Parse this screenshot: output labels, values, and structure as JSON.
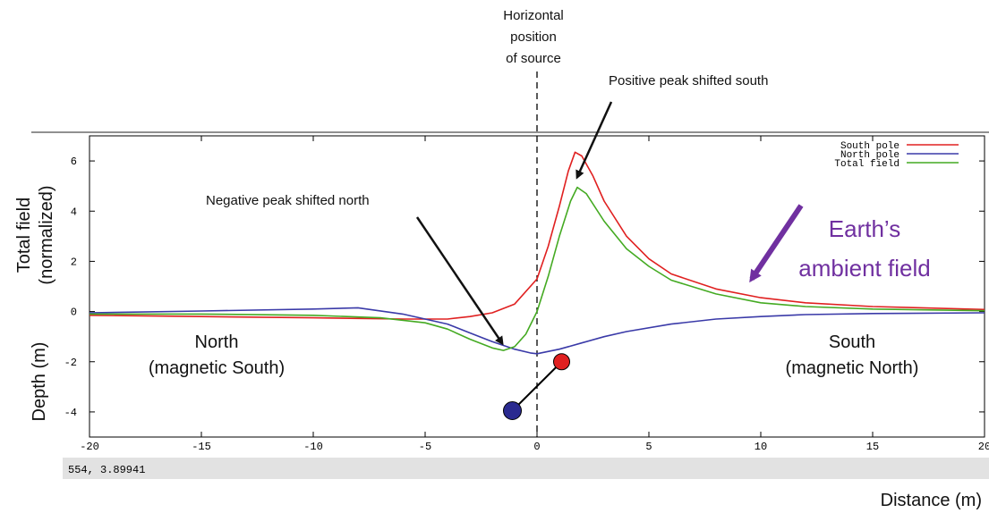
{
  "chart_data": {
    "type": "line",
    "x_range": [
      -20,
      20
    ],
    "y_range": [
      -5,
      7
    ],
    "x_ticks": [
      -20,
      -15,
      -10,
      -5,
      0,
      5,
      10,
      15,
      20
    ],
    "y_ticks": [
      -4,
      -2,
      0,
      2,
      4,
      6
    ],
    "xlabel": "Distance (m)",
    "ylabel_top": [
      "Total field",
      "(normalized)"
    ],
    "ylabel_bottom": "Depth (m)",
    "legend_position": "top-right",
    "series": [
      {
        "name": "South pole",
        "color": "#e02020",
        "points": [
          [
            -20,
            -0.15
          ],
          [
            -15,
            -0.2
          ],
          [
            -10,
            -0.25
          ],
          [
            -6,
            -0.3
          ],
          [
            -4,
            -0.3
          ],
          [
            -3,
            -0.2
          ],
          [
            -2,
            -0.05
          ],
          [
            -1,
            0.3
          ],
          [
            0,
            1.3
          ],
          [
            0.5,
            2.6
          ],
          [
            1,
            4.2
          ],
          [
            1.4,
            5.6
          ],
          [
            1.7,
            6.35
          ],
          [
            2,
            6.2
          ],
          [
            2.5,
            5.4
          ],
          [
            3,
            4.4
          ],
          [
            4,
            3.0
          ],
          [
            5,
            2.1
          ],
          [
            6,
            1.5
          ],
          [
            8,
            0.9
          ],
          [
            10,
            0.55
          ],
          [
            12,
            0.35
          ],
          [
            15,
            0.2
          ],
          [
            20,
            0.08
          ]
        ]
      },
      {
        "name": "North pole",
        "color": "#3a3aa8",
        "points": [
          [
            -20,
            -0.05
          ],
          [
            -15,
            0.02
          ],
          [
            -10,
            0.1
          ],
          [
            -8,
            0.15
          ],
          [
            -6,
            -0.1
          ],
          [
            -4,
            -0.5
          ],
          [
            -3,
            -0.85
          ],
          [
            -2,
            -1.2
          ],
          [
            -1,
            -1.5
          ],
          [
            -0.3,
            -1.65
          ],
          [
            0,
            -1.68
          ],
          [
            1,
            -1.5
          ],
          [
            2,
            -1.25
          ],
          [
            3,
            -1.0
          ],
          [
            4,
            -0.8
          ],
          [
            6,
            -0.5
          ],
          [
            8,
            -0.3
          ],
          [
            10,
            -0.2
          ],
          [
            12,
            -0.12
          ],
          [
            15,
            -0.08
          ],
          [
            20,
            -0.05
          ]
        ]
      },
      {
        "name": "Total field",
        "color": "#44aa22",
        "points": [
          [
            -20,
            -0.1
          ],
          [
            -15,
            -0.1
          ],
          [
            -10,
            -0.15
          ],
          [
            -7,
            -0.25
          ],
          [
            -5,
            -0.45
          ],
          [
            -4,
            -0.7
          ],
          [
            -3,
            -1.1
          ],
          [
            -2,
            -1.45
          ],
          [
            -1.5,
            -1.55
          ],
          [
            -1,
            -1.4
          ],
          [
            -0.5,
            -0.9
          ],
          [
            0,
            0.0
          ],
          [
            0.5,
            1.4
          ],
          [
            1,
            3.0
          ],
          [
            1.5,
            4.4
          ],
          [
            1.8,
            4.95
          ],
          [
            2.2,
            4.7
          ],
          [
            3,
            3.6
          ],
          [
            4,
            2.5
          ],
          [
            5,
            1.8
          ],
          [
            6,
            1.25
          ],
          [
            8,
            0.7
          ],
          [
            10,
            0.35
          ],
          [
            12,
            0.2
          ],
          [
            15,
            0.1
          ],
          [
            20,
            0.03
          ]
        ]
      }
    ],
    "source_position_x": 0,
    "south_pole_marker": {
      "x": 1.1,
      "y": -2.0,
      "color": "#e02020"
    },
    "north_pole_marker": {
      "x": -1.1,
      "y": -3.95,
      "color": "#2a2a90"
    }
  },
  "annotations": {
    "source_label": [
      "Horizontal",
      "position",
      "of source"
    ],
    "positive_peak": "Positive peak shifted south",
    "negative_peak": "Negative peak shifted north",
    "ambient_field": [
      "Earth’s",
      "ambient field"
    ],
    "ambient_color": "#7030a0",
    "north_label": [
      "North",
      "(magnetic South)"
    ],
    "south_label": [
      "South",
      "(magnetic North)"
    ]
  },
  "status_bar": {
    "readout": "554,  3.89941"
  }
}
